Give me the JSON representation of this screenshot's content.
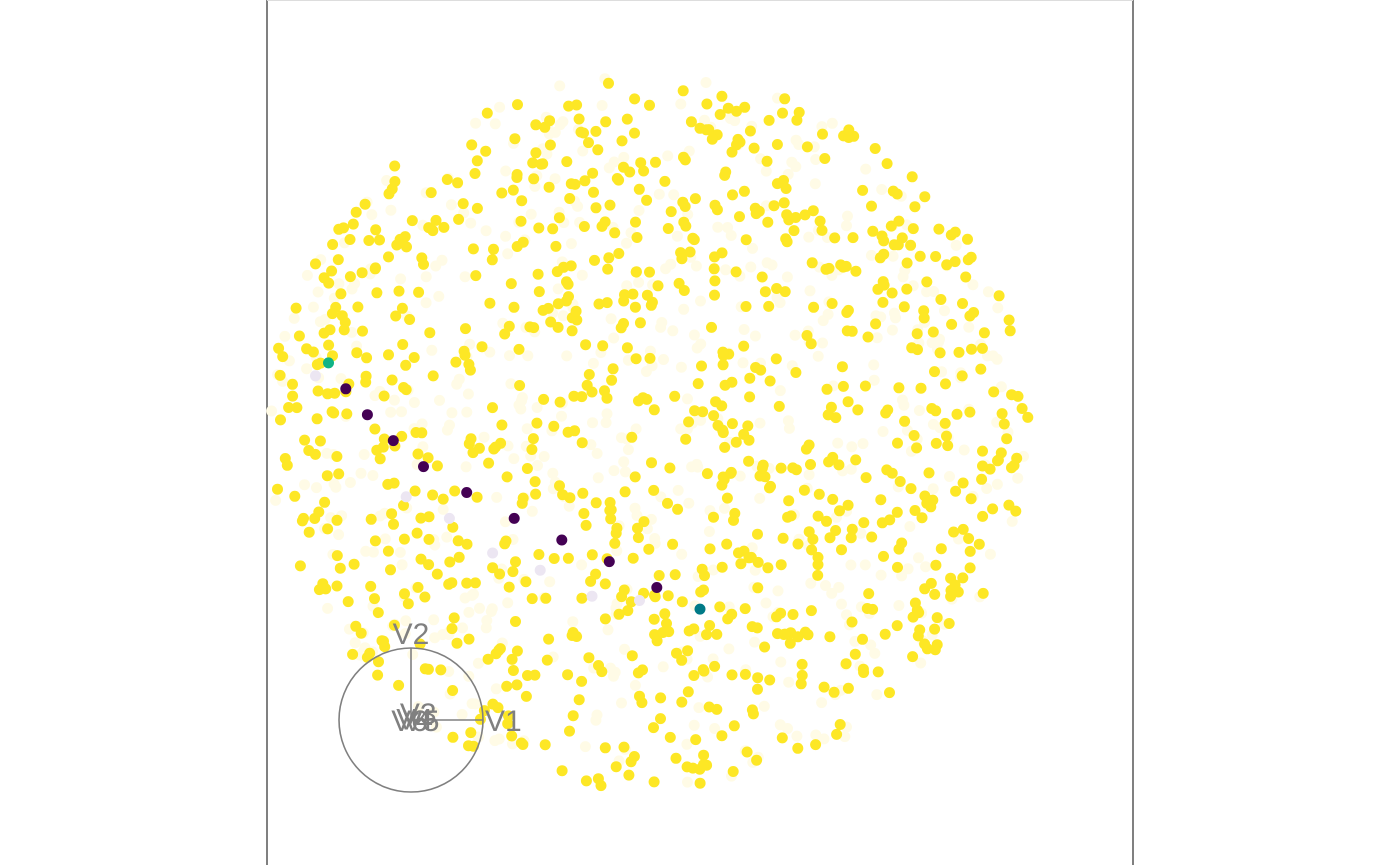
{
  "chart_data": {
    "type": "scatter",
    "title": "",
    "xlabel": "",
    "ylabel": "",
    "grid": false,
    "legend": "none",
    "colors": {
      "background": "#ffffff",
      "frame": "#808080",
      "yellow": "#fde725",
      "faint": "#fffbe6",
      "purple": "#440154",
      "teal": "#007a87",
      "green": "#10b386",
      "lavender": "#ece6f2"
    },
    "projection_axes": {
      "labels": [
        "V1",
        "V2",
        "V3",
        "V4",
        "V5",
        "V6"
      ],
      "components": [
        [
          1.0,
          0.0
        ],
        [
          0.0,
          1.0
        ],
        [
          0.1,
          0.1
        ],
        [
          0.05,
          0.02
        ],
        [
          0.14,
          0.0
        ],
        [
          -0.02,
          0.0
        ]
      ]
    },
    "highlighted_points": [
      {
        "x": -0.86,
        "y": 0.16,
        "color": "#10b386"
      },
      {
        "x": -0.82,
        "y": 0.1,
        "color": "#440154"
      },
      {
        "x": -0.77,
        "y": 0.04,
        "color": "#440154"
      },
      {
        "x": -0.71,
        "y": -0.02,
        "color": "#440154"
      },
      {
        "x": -0.64,
        "y": -0.08,
        "color": "#440154"
      },
      {
        "x": -0.54,
        "y": -0.14,
        "color": "#440154"
      },
      {
        "x": -0.43,
        "y": -0.2,
        "color": "#440154"
      },
      {
        "x": -0.32,
        "y": -0.25,
        "color": "#440154"
      },
      {
        "x": -0.21,
        "y": -0.3,
        "color": "#440154"
      },
      {
        "x": -0.1,
        "y": -0.36,
        "color": "#440154"
      },
      {
        "x": 0.0,
        "y": -0.41,
        "color": "#007a87"
      },
      {
        "x": -0.89,
        "y": 0.13,
        "color": "#ece6f2"
      },
      {
        "x": -0.68,
        "y": -0.15,
        "color": "#ece6f2"
      },
      {
        "x": -0.58,
        "y": -0.2,
        "color": "#ece6f2"
      },
      {
        "x": -0.48,
        "y": -0.28,
        "color": "#ece6f2"
      },
      {
        "x": -0.37,
        "y": -0.32,
        "color": "#ece6f2"
      },
      {
        "x": -0.25,
        "y": -0.38,
        "color": "#ece6f2"
      },
      {
        "x": -0.14,
        "y": -0.39,
        "color": "#ece6f2"
      }
    ],
    "cloud": {
      "center": [
        -0.12,
        0.0
      ],
      "radius": 0.88,
      "bright_count": 950,
      "faint_count": 550,
      "colors": [
        "#fde725",
        "#fffbe6"
      ]
    },
    "axes_range": {
      "xlim": [
        -1.2,
        1.2
      ],
      "ylim": [
        -1.0,
        1.0
      ]
    }
  }
}
